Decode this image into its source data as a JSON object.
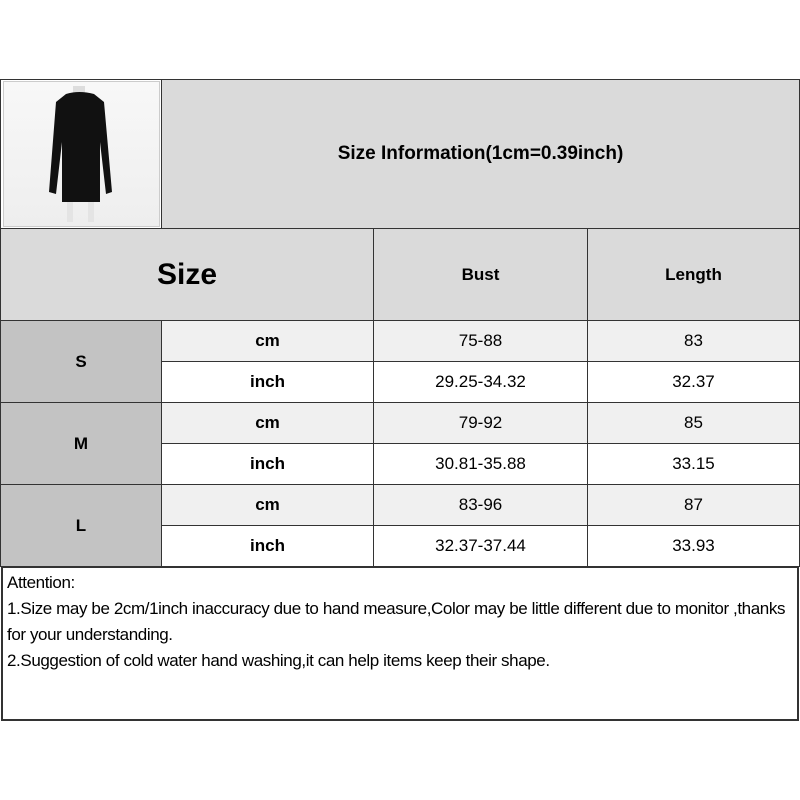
{
  "title": "Size Information(1cm=0.39inch)",
  "header": {
    "size": "Size",
    "columns": [
      "Bust",
      "Length"
    ]
  },
  "rows": [
    {
      "size": "S",
      "cm": {
        "unit": "cm",
        "bust": "75-88",
        "length": "83"
      },
      "inch": {
        "unit": "inch",
        "bust": "29.25-34.32",
        "length": "32.37"
      }
    },
    {
      "size": "M",
      "cm": {
        "unit": "cm",
        "bust": "79-92",
        "length": "85"
      },
      "inch": {
        "unit": "inch",
        "bust": "30.81-35.88",
        "length": "33.15"
      }
    },
    {
      "size": "L",
      "cm": {
        "unit": "cm",
        "bust": "83-96",
        "length": "87"
      },
      "inch": {
        "unit": "inch",
        "bust": "32.37-37.44",
        "length": "33.93"
      }
    }
  ],
  "notes": [
    "Attention:",
    "1.Size may be 2cm/1inch inaccuracy due to hand measure,Color may be little different due to monitor ,thanks for your understanding.",
    "2.Suggestion of cold water hand washing,it can help items keep their shape."
  ],
  "colors": {
    "header": "#dadada",
    "size_cell": "#c3c3c3",
    "cm_row": "#f0f0f0"
  }
}
